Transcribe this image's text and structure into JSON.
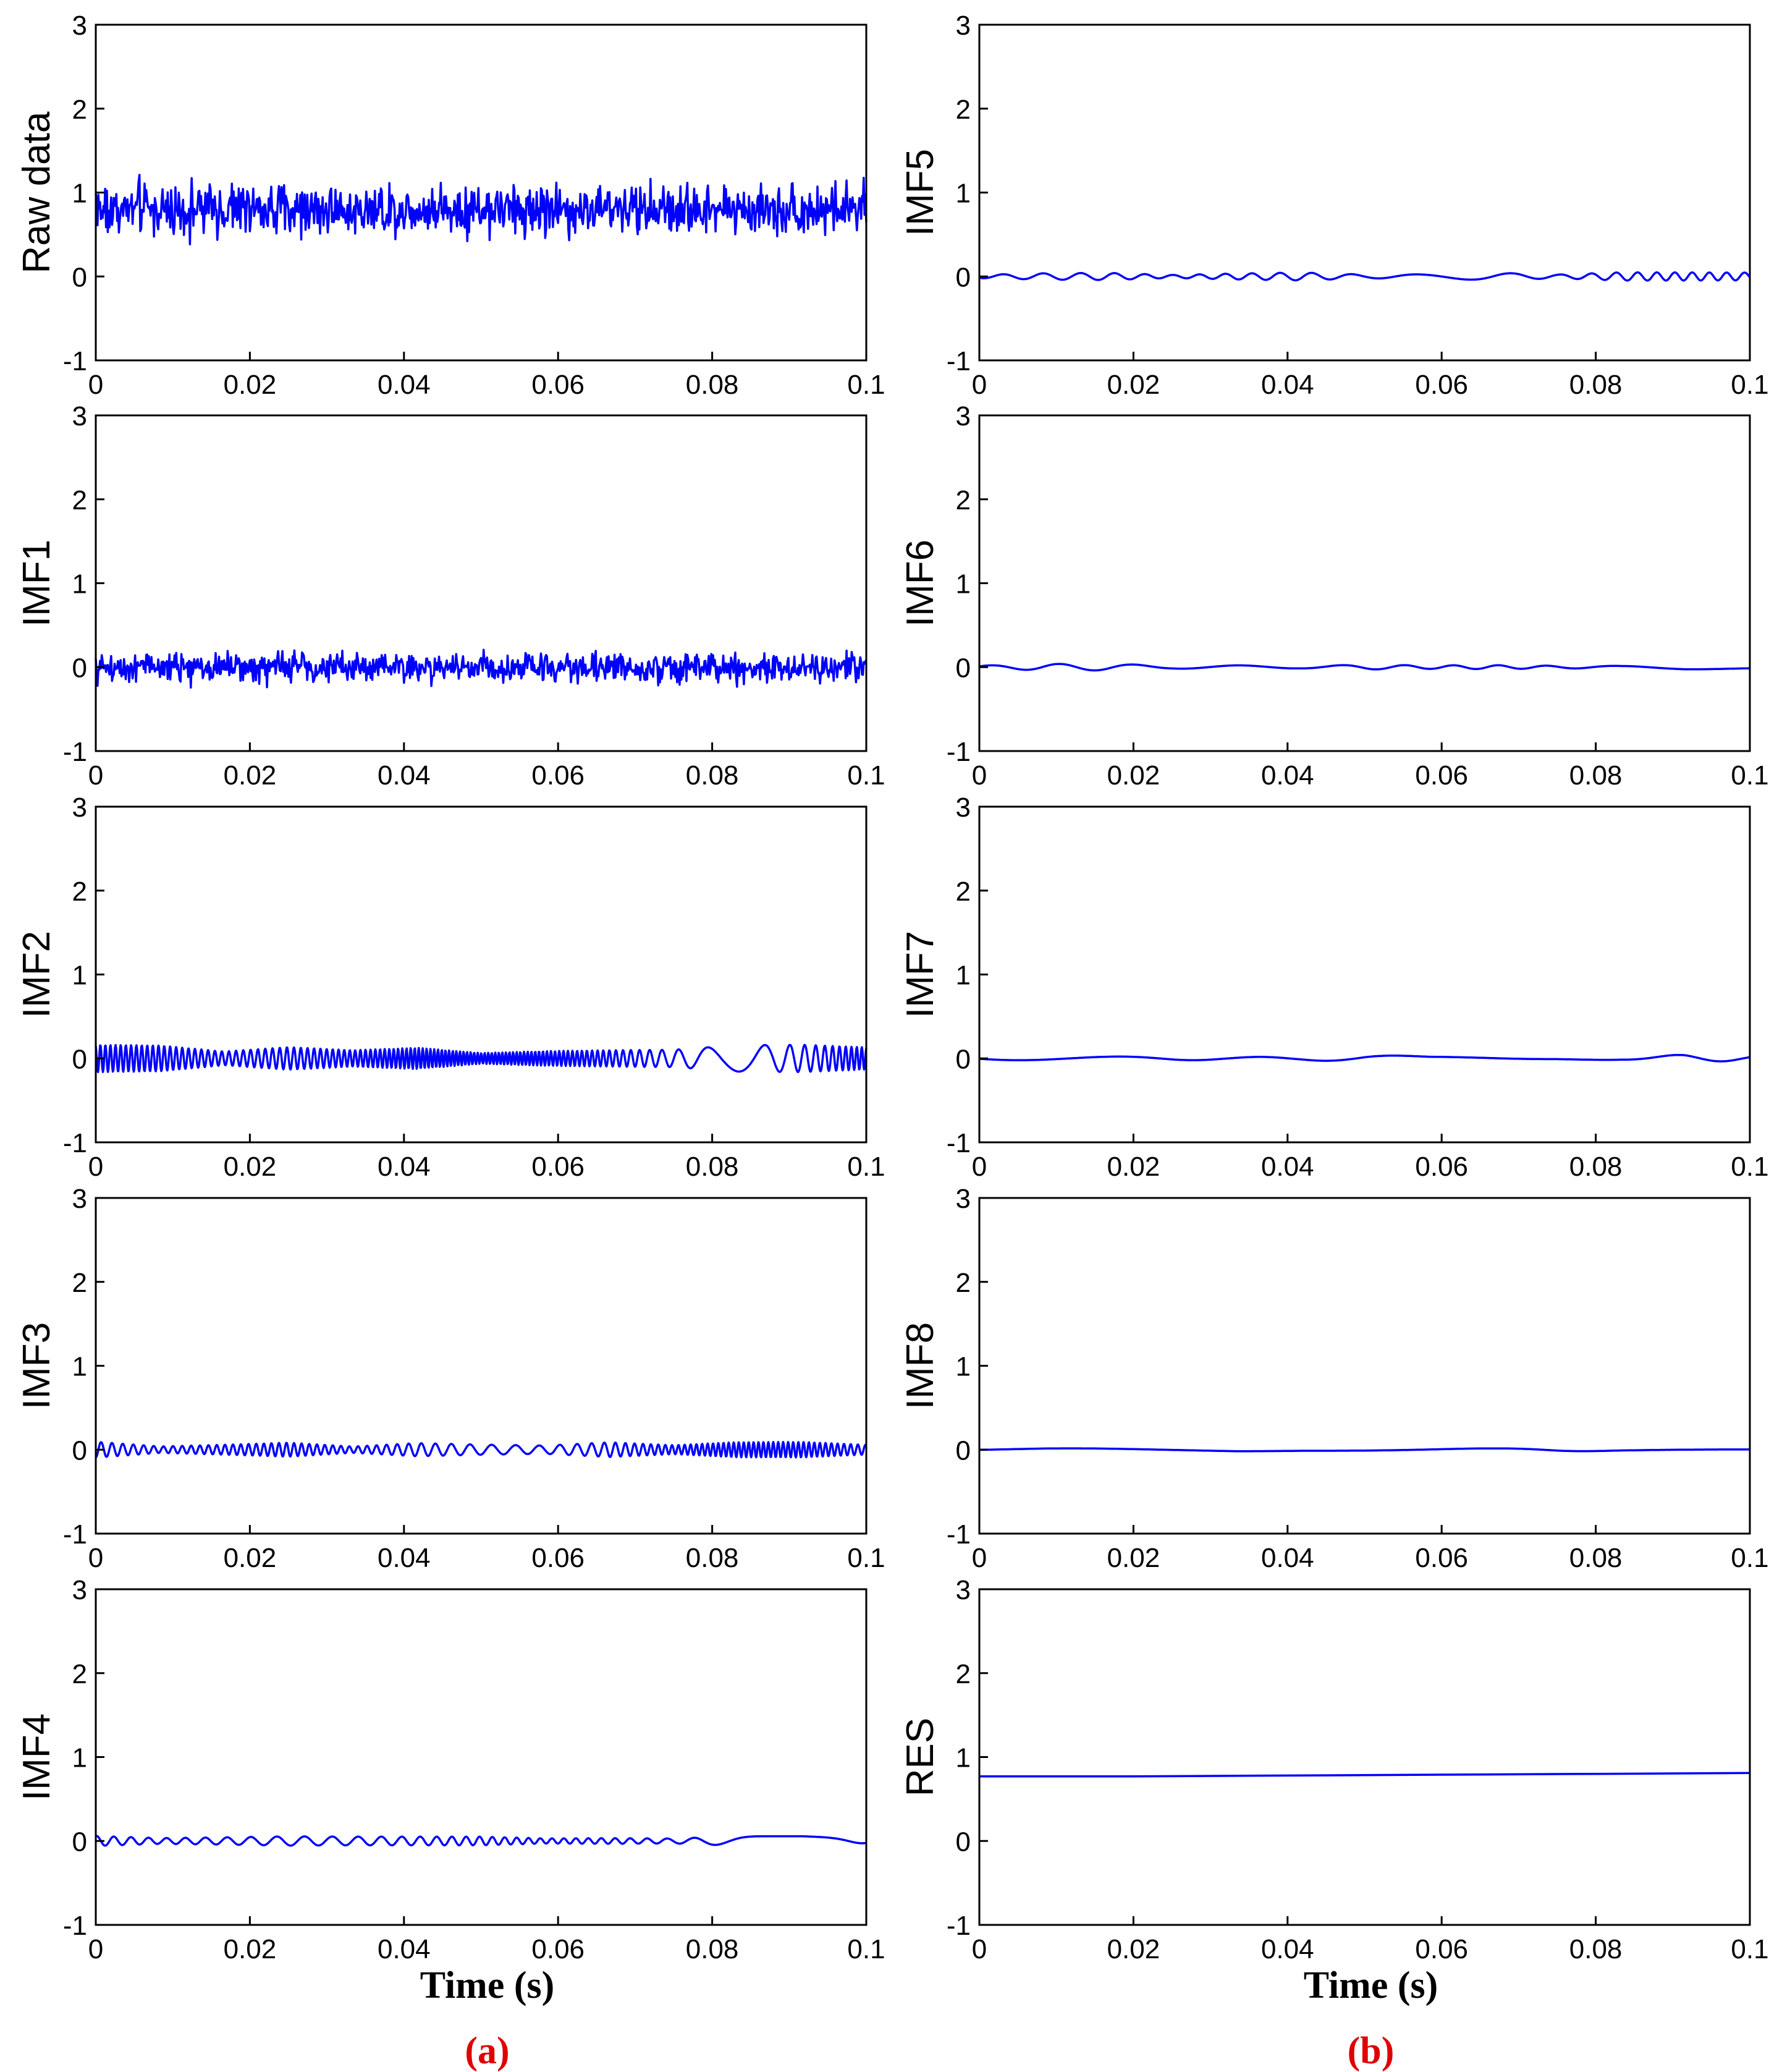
{
  "colors": {
    "line": "#0000ff",
    "axis": "#000000",
    "panel_label": "#e00000"
  },
  "x_axis": {
    "ticks": [
      "0",
      "0.02",
      "0.04",
      "0.06",
      "0.08",
      "0.1"
    ],
    "tick_values": [
      0,
      0.02,
      0.04,
      0.06,
      0.08,
      0.1
    ],
    "xlim": [
      0,
      0.1
    ]
  },
  "y_axis": {
    "ticks": [
      "-1",
      "0",
      "1",
      "2",
      "3"
    ],
    "tick_values": [
      -1,
      0,
      1,
      2,
      3
    ],
    "ylim": [
      -1,
      3
    ]
  },
  "xlabel": "Time (s)",
  "columns": [
    {
      "panel_label": "(a)",
      "xlabel": "Time (s)"
    },
    {
      "panel_label": "(b)",
      "xlabel": "Time (s)"
    }
  ],
  "chart_data": [
    {
      "type": "line",
      "column": 0,
      "row": 0,
      "ylabel": "Raw data",
      "xlim": [
        0,
        0.1
      ],
      "ylim": [
        -1,
        3
      ],
      "series": [
        {
          "kind": "noise",
          "mean": 0.8,
          "amplitude": 0.28,
          "min": 0.15,
          "max": 1.35
        }
      ]
    },
    {
      "type": "line",
      "column": 0,
      "row": 1,
      "ylabel": "IMF1",
      "xlim": [
        0,
        0.1
      ],
      "ylim": [
        -1,
        3
      ],
      "series": [
        {
          "kind": "noise",
          "mean": 0.0,
          "amplitude": 0.16,
          "min": -0.35,
          "max": 0.4
        }
      ]
    },
    {
      "type": "line",
      "column": 0,
      "row": 2,
      "ylabel": "IMF2",
      "xlim": [
        0,
        0.1
      ],
      "ylim": [
        -1,
        3
      ],
      "series": [
        {
          "kind": "oscillation",
          "mean": 0.0,
          "amplitude": 0.18,
          "min": -0.28,
          "max": 0.28,
          "cycles": 140
        }
      ]
    },
    {
      "type": "line",
      "column": 0,
      "row": 3,
      "ylabel": "IMF3",
      "xlim": [
        0,
        0.1
      ],
      "ylim": [
        -1,
        3
      ],
      "series": [
        {
          "kind": "oscillation",
          "mean": 0.0,
          "amplitude": 0.1,
          "min": -0.15,
          "max": 0.15,
          "cycles": 80
        }
      ]
    },
    {
      "type": "line",
      "column": 0,
      "row": 4,
      "ylabel": "IMF4",
      "xlim": [
        0,
        0.1
      ],
      "ylim": [
        -1,
        3
      ],
      "series": [
        {
          "kind": "oscillation",
          "mean": 0.0,
          "amplitude": 0.06,
          "min": -0.1,
          "max": 0.1,
          "cycles": 40
        }
      ]
    },
    {
      "type": "line",
      "column": 1,
      "row": 0,
      "ylabel": "IMF5",
      "xlim": [
        0,
        0.1
      ],
      "ylim": [
        -1,
        3
      ],
      "series": [
        {
          "kind": "oscillation",
          "mean": 0.0,
          "amplitude": 0.05,
          "min": -0.06,
          "max": 0.07,
          "cycles": 22
        }
      ]
    },
    {
      "type": "line",
      "column": 1,
      "row": 1,
      "ylabel": "IMF6",
      "xlim": [
        0,
        0.1
      ],
      "ylim": [
        -1,
        3
      ],
      "series": [
        {
          "kind": "oscillation",
          "mean": 0.0,
          "amplitude": 0.04,
          "min": -0.05,
          "max": 0.06,
          "cycles": 10
        }
      ]
    },
    {
      "type": "line",
      "column": 1,
      "row": 2,
      "ylabel": "IMF7",
      "xlim": [
        0,
        0.1
      ],
      "ylim": [
        -1,
        3
      ],
      "series": [
        {
          "kind": "oscillation",
          "mean": 0.0,
          "amplitude": 0.045,
          "min": -0.05,
          "max": 0.05,
          "cycles": 4.5
        }
      ]
    },
    {
      "type": "line",
      "column": 1,
      "row": 3,
      "ylabel": "IMF8",
      "xlim": [
        0,
        0.1
      ],
      "ylim": [
        -1,
        3
      ],
      "series": [
        {
          "kind": "oscillation",
          "mean": 0.0,
          "amplitude": 0.025,
          "min": -0.03,
          "max": 0.03,
          "cycles": 2
        }
      ]
    },
    {
      "type": "line",
      "column": 1,
      "row": 4,
      "ylabel": "RES",
      "xlim": [
        0,
        0.1
      ],
      "ylim": [
        -1,
        3
      ],
      "series": [
        {
          "kind": "trend",
          "x": [
            0,
            0.02,
            0.04,
            0.06,
            0.08,
            0.1
          ],
          "values": [
            0.77,
            0.77,
            0.78,
            0.79,
            0.8,
            0.81
          ]
        }
      ]
    }
  ]
}
